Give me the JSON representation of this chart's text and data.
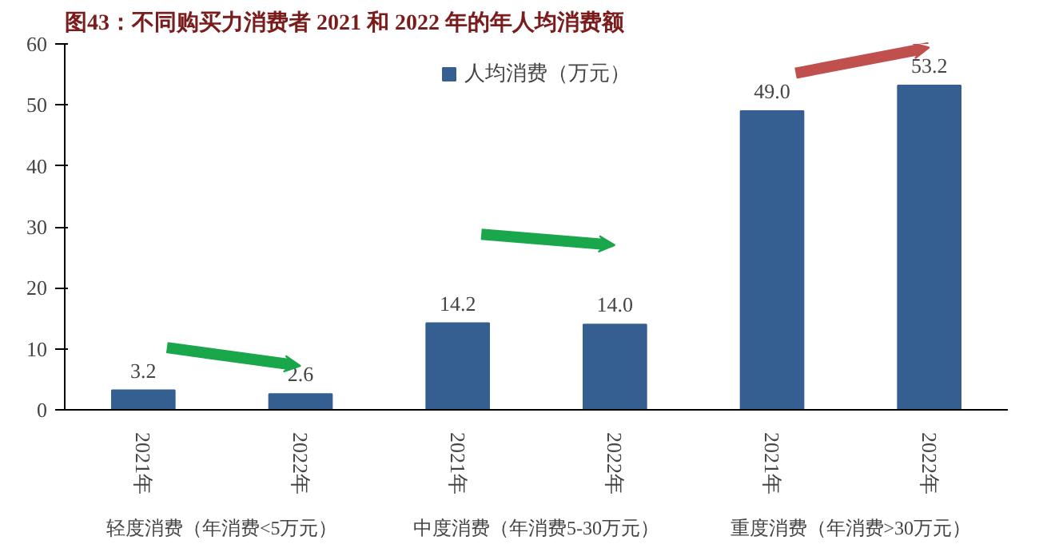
{
  "chart_data": {
    "type": "bar",
    "title": "图43：不同购买力消费者 2021 和 2022 年的年人均消费额",
    "categories": [
      "2021年",
      "2022年",
      "2021年",
      "2022年",
      "2021年",
      "2022年"
    ],
    "series": [
      {
        "name": "人均消费（万元）",
        "color": "#355e91",
        "values": [
          3.2,
          2.6,
          14.2,
          14.0,
          49.0,
          53.2
        ]
      }
    ],
    "value_labels": [
      "3.2",
      "2.6",
      "14.2",
      "14.0",
      "49.0",
      "53.2"
    ],
    "annotations": [
      "轻度消费（年消费<5万元）",
      "中度消费（年消费5-30万元）",
      "重度消费（年消费>30万元）"
    ],
    "ylim": [
      0,
      60
    ],
    "yticks": [
      0,
      10,
      20,
      30,
      40,
      50,
      60
    ],
    "grid": false,
    "legend": "top"
  }
}
